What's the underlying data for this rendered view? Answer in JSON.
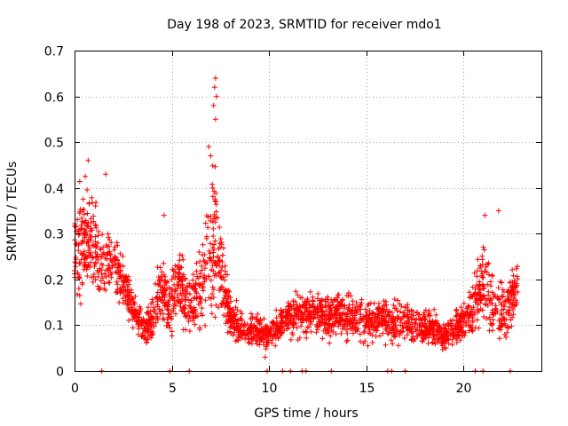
{
  "chart_data": {
    "type": "scatter",
    "title": "Day 198 of 2023, SRMTID for receiver mdo1",
    "xlabel": "GPS time / hours",
    "ylabel": "SRMTID / TECUs",
    "xlim": [
      0,
      24
    ],
    "ylim": [
      0,
      0.7
    ],
    "xticks": [
      0,
      5,
      10,
      15,
      20
    ],
    "yticks": [
      0,
      0.1,
      0.2,
      0.3,
      0.4,
      0.5,
      0.6,
      0.7
    ],
    "xtick_labels": [
      "0",
      "5",
      "10",
      "15",
      "20"
    ],
    "ytick_labels": [
      "0",
      "0.1",
      "0.2",
      "0.3",
      "0.4",
      "0.5",
      "0.6",
      "0.7"
    ],
    "grid": true,
    "marker": "+",
    "color": "#ff0000",
    "series": [
      {
        "name": "SRMTID",
        "envelope": {
          "x": [
            0.0,
            0.3,
            0.6,
            0.9,
            1.2,
            1.5,
            1.8,
            2.1,
            2.4,
            2.7,
            3.0,
            3.3,
            3.6,
            3.9,
            4.2,
            4.5,
            4.8,
            5.1,
            5.4,
            5.7,
            6.0,
            6.3,
            6.6,
            6.9,
            7.2,
            7.5,
            7.8,
            8.1,
            8.4,
            8.7,
            9.0,
            9.3,
            9.6,
            9.9,
            10.2,
            10.5,
            10.8,
            11.1,
            11.4,
            11.7,
            12.0,
            12.3,
            12.6,
            12.9,
            13.2,
            13.5,
            13.8,
            14.1,
            14.4,
            14.7,
            15.0,
            15.3,
            15.6,
            15.9,
            16.2,
            16.5,
            16.8,
            17.1,
            17.4,
            17.7,
            18.0,
            18.3,
            18.6,
            18.9,
            19.2,
            19.5,
            19.8,
            20.1,
            20.4,
            20.7,
            21.0,
            21.3,
            21.6,
            21.9,
            22.2,
            22.5,
            22.8
          ],
          "center": [
            0.25,
            0.28,
            0.3,
            0.28,
            0.24,
            0.22,
            0.24,
            0.22,
            0.2,
            0.17,
            0.14,
            0.11,
            0.09,
            0.1,
            0.15,
            0.18,
            0.14,
            0.17,
            0.2,
            0.15,
            0.13,
            0.17,
            0.2,
            0.24,
            0.3,
            0.22,
            0.15,
            0.11,
            0.1,
            0.09,
            0.09,
            0.09,
            0.09,
            0.08,
            0.09,
            0.1,
            0.11,
            0.12,
            0.12,
            0.12,
            0.13,
            0.12,
            0.12,
            0.12,
            0.12,
            0.13,
            0.12,
            0.12,
            0.12,
            0.11,
            0.11,
            0.11,
            0.11,
            0.12,
            0.11,
            0.1,
            0.11,
            0.11,
            0.11,
            0.1,
            0.1,
            0.1,
            0.09,
            0.07,
            0.08,
            0.09,
            0.1,
            0.12,
            0.13,
            0.15,
            0.2,
            0.17,
            0.15,
            0.13,
            0.13,
            0.16,
            0.19
          ],
          "spread": [
            0.09,
            0.1,
            0.1,
            0.09,
            0.08,
            0.07,
            0.06,
            0.05,
            0.05,
            0.04,
            0.04,
            0.03,
            0.03,
            0.04,
            0.06,
            0.07,
            0.06,
            0.07,
            0.07,
            0.06,
            0.05,
            0.07,
            0.09,
            0.12,
            0.16,
            0.1,
            0.05,
            0.04,
            0.04,
            0.03,
            0.03,
            0.03,
            0.03,
            0.03,
            0.03,
            0.03,
            0.03,
            0.04,
            0.04,
            0.04,
            0.04,
            0.04,
            0.04,
            0.04,
            0.04,
            0.04,
            0.04,
            0.04,
            0.04,
            0.04,
            0.04,
            0.04,
            0.04,
            0.04,
            0.04,
            0.04,
            0.04,
            0.04,
            0.04,
            0.04,
            0.04,
            0.04,
            0.03,
            0.02,
            0.03,
            0.03,
            0.03,
            0.04,
            0.05,
            0.06,
            0.08,
            0.07,
            0.06,
            0.05,
            0.05,
            0.06,
            0.04
          ]
        },
        "notable_points": [
          {
            "x": 0.7,
            "y": 0.46
          },
          {
            "x": 1.6,
            "y": 0.43
          },
          {
            "x": 4.6,
            "y": 0.34
          },
          {
            "x": 7.25,
            "y": 0.64
          },
          {
            "x": 7.2,
            "y": 0.62
          },
          {
            "x": 7.3,
            "y": 0.6
          },
          {
            "x": 7.15,
            "y": 0.58
          },
          {
            "x": 7.25,
            "y": 0.55
          },
          {
            "x": 6.9,
            "y": 0.49
          },
          {
            "x": 7.0,
            "y": 0.47
          },
          {
            "x": 21.1,
            "y": 0.34
          },
          {
            "x": 21.8,
            "y": 0.35
          },
          {
            "x": 9.8,
            "y": 0.03
          },
          {
            "x": 19.1,
            "y": 0.05
          }
        ],
        "zero_points_x": [
          1.4,
          4.9,
          5.9,
          9.9,
          10.7,
          11.1,
          11.7,
          11.9,
          13.2,
          16.1,
          16.3,
          17.0,
          20.6,
          21.0,
          22.4
        ]
      }
    ]
  }
}
